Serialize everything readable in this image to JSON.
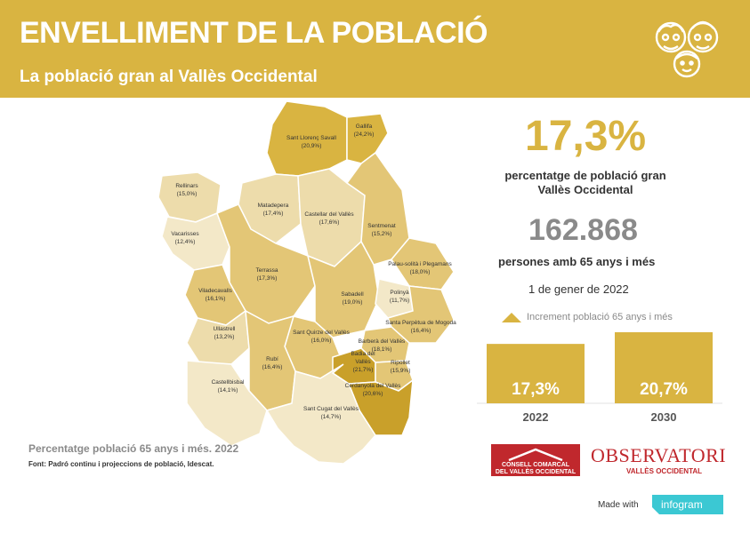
{
  "header": {
    "title": "ENVELLIMENT DE LA POBLACIÓ",
    "subtitle": "La població gran al Vallès Occidental",
    "icon": "elderly-faces-icon"
  },
  "map": {
    "caption": "Percentatge població 65 anys i més. 2022",
    "source": "Font: Padró continu i projeccions de població, Idescat.",
    "municipalities": [
      {
        "name": "Sant Llorenç Savall",
        "value": "(20,9%)"
      },
      {
        "name": "Gallifa",
        "value": "(24,2%)"
      },
      {
        "name": "Rellinars",
        "value": "(15,0%)"
      },
      {
        "name": "Matadepera",
        "value": "(17,4%)"
      },
      {
        "name": "Castellar del Vallès",
        "value": "(17,6%)"
      },
      {
        "name": "Sentmenat",
        "value": "(15,2%)"
      },
      {
        "name": "Vacarisses",
        "value": "(12,4%)"
      },
      {
        "name": "Palau-solità i Plegamans",
        "value": "(18,0%)"
      },
      {
        "name": "Terrassa",
        "value": "(17,3%)"
      },
      {
        "name": "Viladecavalls",
        "value": "(16,1%)"
      },
      {
        "name": "Sabadell",
        "value": "(19,0%)"
      },
      {
        "name": "Polinyà",
        "value": "(11,7%)"
      },
      {
        "name": "Santa Perpètua de Mogoda",
        "value": "(16,4%)"
      },
      {
        "name": "Ullastrell",
        "value": "(13,2%)"
      },
      {
        "name": "Sant Quirze del Vallès",
        "value": "(16,0%)"
      },
      {
        "name": "Barberà del Vallès",
        "value": "(18,1%)"
      },
      {
        "name": "Badia del Vallès",
        "value": "(21,7%)"
      },
      {
        "name": "Ripollet",
        "value": "(15,9%)"
      },
      {
        "name": "Rubí",
        "value": "(16,4%)"
      },
      {
        "name": "Castellbisbal",
        "value": "(14,1%)"
      },
      {
        "name": "Cerdanyola del Vallès",
        "value": "(20,6%)"
      },
      {
        "name": "Sant Cugat del Vallès",
        "value": "(14,7%)"
      }
    ]
  },
  "kpis": {
    "pct": "17,3%",
    "pct_label": "percentatge de població gran Vallès Occidental",
    "count": "162.868",
    "count_label": "persones amb 65 anys i més",
    "date": "1 de gener de 2022"
  },
  "chart_data": {
    "type": "bar",
    "legend": "Increment població 65 anys i més",
    "categories": [
      "2022",
      "2030"
    ],
    "series": [
      {
        "name": "Increment població 65 anys i més",
        "values": [
          17.3,
          20.7
        ]
      }
    ],
    "value_labels": [
      "17,3%",
      "20,7%"
    ],
    "ylim": [
      0,
      20.7
    ],
    "grid": false,
    "legend_position": "top",
    "color": "#d9b441"
  },
  "logos": {
    "ccvo_line1": "CONSELL COMARCAL",
    "ccvo_line2": "DEL VALLÈS OCCIDENTAL",
    "obs_title": "OBSERVATORI",
    "obs_sub": "VALLÈS OCCIDENTAL"
  },
  "footer": {
    "made_with": "Made with",
    "brand": "infogram"
  },
  "colors": {
    "brand": "#d9b441",
    "dark": "#c9a02a",
    "mid": "#e3c676",
    "light": "#eddcab",
    "lightest": "#f3e8c8",
    "red": "#c0282d",
    "infogram": "#3bc8d3"
  }
}
